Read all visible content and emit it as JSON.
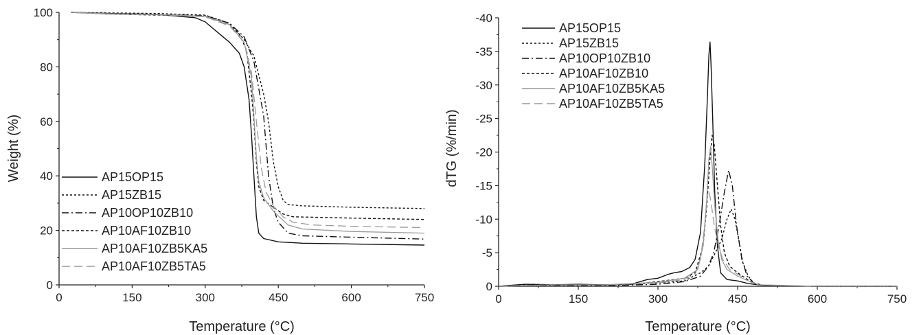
{
  "chart_data": [
    {
      "type": "line",
      "title": "",
      "xlabel": "Temperature (°C)",
      "ylabel": "Weight (%)",
      "xlim": [
        0,
        750
      ],
      "ylim": [
        0,
        100
      ],
      "xticks": [
        "0",
        "150",
        "300",
        "450",
        "600",
        "750"
      ],
      "yticks": [
        "0",
        "20",
        "40",
        "60",
        "80",
        "100"
      ],
      "grid": false,
      "legend_position": "bottom-left",
      "series": [
        {
          "name": "AP15OP15",
          "color": "#111111",
          "dash": "solid",
          "points": [
            [
              25,
              100
            ],
            [
              100,
              99.6
            ],
            [
              200,
              99.3
            ],
            [
              280,
              98.0
            ],
            [
              300,
              96.5
            ],
            [
              330,
              92
            ],
            [
              350,
              89
            ],
            [
              370,
              85
            ],
            [
              380,
              80
            ],
            [
              390,
              68
            ],
            [
              395,
              55
            ],
            [
              400,
              40
            ],
            [
              405,
              25
            ],
            [
              410,
              19
            ],
            [
              420,
              17
            ],
            [
              450,
              15.8
            ],
            [
              500,
              15.3
            ],
            [
              600,
              15.0
            ],
            [
              750,
              14.6
            ]
          ]
        },
        {
          "name": "AP15ZB15",
          "color": "#111111",
          "dash": "3,3",
          "points": [
            [
              25,
              100
            ],
            [
              100,
              99.8
            ],
            [
              200,
              99.6
            ],
            [
              300,
              99.0
            ],
            [
              350,
              96
            ],
            [
              380,
              90
            ],
            [
              400,
              84
            ],
            [
              420,
              70
            ],
            [
              430,
              60
            ],
            [
              440,
              45
            ],
            [
              450,
              36
            ],
            [
              460,
              31
            ],
            [
              470,
              29.5
            ],
            [
              500,
              29
            ],
            [
              600,
              28.5
            ],
            [
              750,
              28
            ]
          ]
        },
        {
          "name": "AP10OP10ZB10",
          "color": "#111111",
          "dash": "10,4,2,4",
          "points": [
            [
              25,
              100
            ],
            [
              100,
              99.5
            ],
            [
              200,
              99.2
            ],
            [
              300,
              98.8
            ],
            [
              350,
              96
            ],
            [
              380,
              91
            ],
            [
              400,
              82
            ],
            [
              420,
              62
            ],
            [
              430,
              40
            ],
            [
              440,
              28
            ],
            [
              450,
              23
            ],
            [
              470,
              19
            ],
            [
              500,
              18
            ],
            [
              600,
              17.5
            ],
            [
              750,
              16.8
            ]
          ]
        },
        {
          "name": "AP10AF10ZB10",
          "color": "#111111",
          "dash": "4,3",
          "points": [
            [
              25,
              100
            ],
            [
              100,
              99.4
            ],
            [
              200,
              99.0
            ],
            [
              300,
              98.5
            ],
            [
              350,
              95.5
            ],
            [
              370,
              92
            ],
            [
              385,
              86
            ],
            [
              395,
              70
            ],
            [
              400,
              60
            ],
            [
              405,
              45
            ],
            [
              410,
              36
            ],
            [
              420,
              31
            ],
            [
              440,
              28.5
            ],
            [
              460,
              26
            ],
            [
              480,
              25
            ],
            [
              600,
              24.5
            ],
            [
              750,
              24
            ]
          ]
        },
        {
          "name": "AP10AF10ZB5KA5",
          "color": "#999999",
          "dash": "solid",
          "points": [
            [
              25,
              100
            ],
            [
              100,
              99.5
            ],
            [
              200,
              99.2
            ],
            [
              300,
              98.6
            ],
            [
              350,
              95.5
            ],
            [
              380,
              89
            ],
            [
              395,
              76
            ],
            [
              400,
              62
            ],
            [
              405,
              47
            ],
            [
              410,
              38
            ],
            [
              420,
              32
            ],
            [
              440,
              27
            ],
            [
              470,
              22
            ],
            [
              500,
              20.5
            ],
            [
              600,
              19.6
            ],
            [
              750,
              19
            ]
          ]
        },
        {
          "name": "AP10AF10ZB5TA5",
          "color": "#999999",
          "dash": "12,6",
          "points": [
            [
              25,
              100
            ],
            [
              100,
              99.4
            ],
            [
              200,
              99.1
            ],
            [
              300,
              98.4
            ],
            [
              350,
              95
            ],
            [
              380,
              89
            ],
            [
              395,
              78
            ],
            [
              405,
              60
            ],
            [
              415,
              43
            ],
            [
              425,
              34
            ],
            [
              440,
              29
            ],
            [
              460,
              25
            ],
            [
              480,
              23
            ],
            [
              520,
              22
            ],
            [
              600,
              21.5
            ],
            [
              750,
              21
            ]
          ]
        }
      ]
    },
    {
      "type": "line",
      "title": "",
      "xlabel": "Temperature (°C)",
      "ylabel": "dTG (%/min)",
      "xlim": [
        0,
        750
      ],
      "ylim": [
        0,
        -40
      ],
      "xticks": [
        "0",
        "150",
        "300",
        "450",
        "600",
        "750"
      ],
      "yticks": [
        "0",
        "-5",
        "-10",
        "-15",
        "-20",
        "-25",
        "-30",
        "-35",
        "-40"
      ],
      "grid": false,
      "legend_position": "top-left",
      "series": [
        {
          "name": "AP15OP15",
          "color": "#111111",
          "dash": "solid",
          "points": [
            [
              0,
              0
            ],
            [
              50,
              -0.3
            ],
            [
              100,
              -0.2
            ],
            [
              150,
              -0.3
            ],
            [
              200,
              -0.2
            ],
            [
              250,
              -0.3
            ],
            [
              280,
              -1.0
            ],
            [
              300,
              -1.2
            ],
            [
              320,
              -1.8
            ],
            [
              330,
              -2.0
            ],
            [
              345,
              -2.2
            ],
            [
              360,
              -2.8
            ],
            [
              370,
              -4.0
            ],
            [
              380,
              -8
            ],
            [
              388,
              -18
            ],
            [
              393,
              -28
            ],
            [
              396,
              -34.5
            ],
            [
              398,
              -36.4
            ],
            [
              400,
              -33
            ],
            [
              403,
              -25
            ],
            [
              407,
              -14
            ],
            [
              412,
              -6
            ],
            [
              418,
              -2
            ],
            [
              430,
              -1.0
            ],
            [
              450,
              -0.8
            ],
            [
              470,
              -0.4
            ],
            [
              500,
              -0.1
            ],
            [
              600,
              0
            ],
            [
              750,
              0
            ]
          ]
        },
        {
          "name": "AP15ZB15",
          "color": "#111111",
          "dash": "3,3",
          "points": [
            [
              0,
              0
            ],
            [
              100,
              -0.2
            ],
            [
              200,
              -0.2
            ],
            [
              300,
              -0.5
            ],
            [
              350,
              -0.8
            ],
            [
              380,
              -2.0
            ],
            [
              395,
              -3.0
            ],
            [
              405,
              -4.5
            ],
            [
              420,
              -7
            ],
            [
              430,
              -10
            ],
            [
              438,
              -11.5
            ],
            [
              445,
              -10
            ],
            [
              452,
              -7
            ],
            [
              460,
              -3.5
            ],
            [
              470,
              -1.5
            ],
            [
              480,
              -0.5
            ],
            [
              500,
              -0.1
            ],
            [
              600,
              0
            ],
            [
              750,
              0
            ]
          ]
        },
        {
          "name": "AP10OP10ZB10",
          "color": "#111111",
          "dash": "10,4,2,4",
          "points": [
            [
              0,
              0
            ],
            [
              100,
              -0.1
            ],
            [
              200,
              -0.1
            ],
            [
              300,
              -0.3
            ],
            [
              350,
              -0.7
            ],
            [
              380,
              -1.5
            ],
            [
              395,
              -3.0
            ],
            [
              405,
              -5.0
            ],
            [
              415,
              -9
            ],
            [
              425,
              -14
            ],
            [
              433,
              -17.3
            ],
            [
              440,
              -15
            ],
            [
              448,
              -9
            ],
            [
              458,
              -4
            ],
            [
              468,
              -1.5
            ],
            [
              480,
              -0.5
            ],
            [
              500,
              -0.1
            ],
            [
              600,
              0
            ],
            [
              750,
              0
            ]
          ]
        },
        {
          "name": "AP10AF10ZB10",
          "color": "#111111",
          "dash": "4,3",
          "points": [
            [
              0,
              0
            ],
            [
              60,
              -0.3
            ],
            [
              120,
              -0.2
            ],
            [
              200,
              -0.2
            ],
            [
              250,
              -0.3
            ],
            [
              300,
              -0.7
            ],
            [
              350,
              -1.2
            ],
            [
              370,
              -2.0
            ],
            [
              385,
              -6
            ],
            [
              392,
              -12
            ],
            [
              398,
              -19
            ],
            [
              402,
              -22.5
            ],
            [
              406,
              -21
            ],
            [
              412,
              -15
            ],
            [
              418,
              -9
            ],
            [
              425,
              -5
            ],
            [
              435,
              -3
            ],
            [
              450,
              -2
            ],
            [
              465,
              -1.2
            ],
            [
              480,
              -0.4
            ],
            [
              500,
              -0.1
            ],
            [
              600,
              0
            ],
            [
              750,
              0
            ]
          ]
        },
        {
          "name": "AP10AF10ZB5KA5",
          "color": "#999999",
          "dash": "solid",
          "points": [
            [
              0,
              0
            ],
            [
              100,
              -0.2
            ],
            [
              200,
              -0.2
            ],
            [
              300,
              -0.6
            ],
            [
              350,
              -1.2
            ],
            [
              375,
              -2.5
            ],
            [
              385,
              -6
            ],
            [
              392,
              -13
            ],
            [
              396,
              -19
            ],
            [
              399,
              -20.8
            ],
            [
              402,
              -18
            ],
            [
              407,
              -12
            ],
            [
              413,
              -7
            ],
            [
              420,
              -4
            ],
            [
              430,
              -2.5
            ],
            [
              450,
              -1.5
            ],
            [
              470,
              -0.8
            ],
            [
              490,
              -0.2
            ],
            [
              600,
              0
            ],
            [
              750,
              0
            ]
          ]
        },
        {
          "name": "AP10AF10ZB5TA5",
          "color": "#999999",
          "dash": "12,6",
          "points": [
            [
              0,
              0
            ],
            [
              100,
              -0.2
            ],
            [
              200,
              -0.2
            ],
            [
              300,
              -0.5
            ],
            [
              350,
              -1.0
            ],
            [
              370,
              -1.8
            ],
            [
              380,
              -4
            ],
            [
              388,
              -9
            ],
            [
              393,
              -13.5
            ],
            [
              396,
              -14.2
            ],
            [
              400,
              -12.5
            ],
            [
              406,
              -9
            ],
            [
              414,
              -6
            ],
            [
              422,
              -4
            ],
            [
              435,
              -2.5
            ],
            [
              450,
              -1.8
            ],
            [
              470,
              -0.8
            ],
            [
              490,
              -0.2
            ],
            [
              600,
              0
            ],
            [
              750,
              0
            ]
          ]
        }
      ]
    }
  ]
}
